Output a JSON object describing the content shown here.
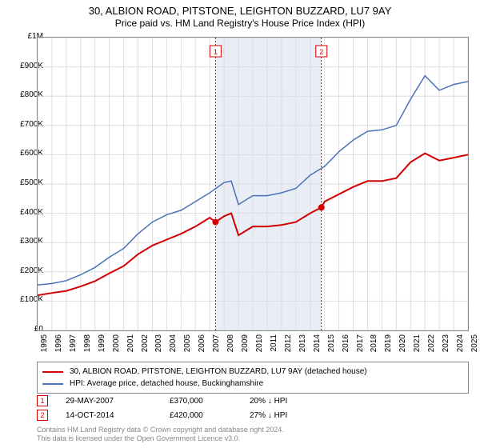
{
  "title": {
    "main": "30, ALBION ROAD, PITSTONE, LEIGHTON BUZZARD, LU7 9AY",
    "sub": "Price paid vs. HM Land Registry's House Price Index (HPI)"
  },
  "chart": {
    "type": "line",
    "background_color": "#ffffff",
    "grid_color": "#dddddd",
    "shaded_band": {
      "x_start": 2007.4,
      "x_end": 2014.78,
      "color": "#e9eef6"
    },
    "xlim": [
      1995,
      2025
    ],
    "ylim": [
      0,
      1000000
    ],
    "ytick_step": 100000,
    "yticks_labels": [
      "£0",
      "£100K",
      "£200K",
      "£300K",
      "£400K",
      "£500K",
      "£600K",
      "£700K",
      "£800K",
      "£900K",
      "£1M"
    ],
    "xticks": [
      1995,
      1996,
      1997,
      1998,
      1999,
      2000,
      2001,
      2002,
      2003,
      2004,
      2005,
      2006,
      2007,
      2008,
      2009,
      2010,
      2011,
      2012,
      2013,
      2014,
      2015,
      2016,
      2017,
      2018,
      2019,
      2020,
      2021,
      2022,
      2023,
      2024,
      2025
    ],
    "series": [
      {
        "name": "property",
        "label": "30, ALBION ROAD, PITSTONE, LEIGHTON BUZZARD, LU7 9AY (detached house)",
        "color": "#d40000",
        "line_width": 2,
        "x": [
          1995,
          1996,
          1997,
          1998,
          1999,
          2000,
          2001,
          2002,
          2003,
          2004,
          2005,
          2006,
          2007,
          2007.4,
          2008,
          2008.5,
          2009,
          2010,
          2011,
          2012,
          2013,
          2014,
          2014.78,
          2015,
          2016,
          2017,
          2018,
          2019,
          2020,
          2021,
          2022,
          2023,
          2024,
          2025
        ],
        "y": [
          120000,
          128000,
          135000,
          150000,
          168000,
          195000,
          220000,
          260000,
          290000,
          310000,
          330000,
          355000,
          385000,
          370000,
          390000,
          400000,
          325000,
          355000,
          355000,
          360000,
          370000,
          400000,
          420000,
          440000,
          465000,
          490000,
          510000,
          510000,
          520000,
          575000,
          605000,
          580000,
          590000,
          600000
        ]
      },
      {
        "name": "hpi",
        "label": "HPI: Average price, detached house, Buckinghamshire",
        "color": "#4a72b8",
        "line_width": 1.5,
        "x": [
          1995,
          1996,
          1997,
          1998,
          1999,
          2000,
          2001,
          2002,
          2003,
          2004,
          2005,
          2006,
          2007,
          2008,
          2008.5,
          2009,
          2010,
          2011,
          2012,
          2013,
          2014,
          2015,
          2016,
          2017,
          2018,
          2019,
          2020,
          2021,
          2022,
          2023,
          2024,
          2025
        ],
        "y": [
          155000,
          160000,
          170000,
          190000,
          215000,
          250000,
          280000,
          330000,
          370000,
          395000,
          410000,
          440000,
          470000,
          505000,
          510000,
          430000,
          460000,
          460000,
          470000,
          485000,
          530000,
          560000,
          610000,
          650000,
          680000,
          685000,
          700000,
          790000,
          870000,
          820000,
          840000,
          850000
        ]
      }
    ],
    "event_markers": [
      {
        "n": "1",
        "x": 2007.4,
        "y": 370000,
        "color": "#d40000"
      },
      {
        "n": "2",
        "x": 2014.78,
        "y": 420000,
        "color": "#d40000"
      }
    ],
    "marker_badge_top_y": 58,
    "marker_line_color": "#d40000",
    "axis_fontsize": 10,
    "title_fontsize": 13
  },
  "legend": {
    "border_color": "#888888",
    "items": [
      {
        "color": "#d40000",
        "label": "30, ALBION ROAD, PITSTONE, LEIGHTON BUZZARD, LU7 9AY (detached house)"
      },
      {
        "color": "#4a72b8",
        "label": "HPI: Average price, detached house, Buckinghamshire"
      }
    ]
  },
  "marker_table": {
    "rows": [
      {
        "n": "1",
        "color": "#d40000",
        "date": "29-MAY-2007",
        "price": "£370,000",
        "diff": "20% ↓ HPI"
      },
      {
        "n": "2",
        "color": "#d40000",
        "date": "14-OCT-2014",
        "price": "£420,000",
        "diff": "27% ↓ HPI"
      }
    ]
  },
  "footer": {
    "line1": "Contains HM Land Registry data © Crown copyright and database right 2024.",
    "line2": "This data is licensed under the Open Government Licence v3.0."
  }
}
